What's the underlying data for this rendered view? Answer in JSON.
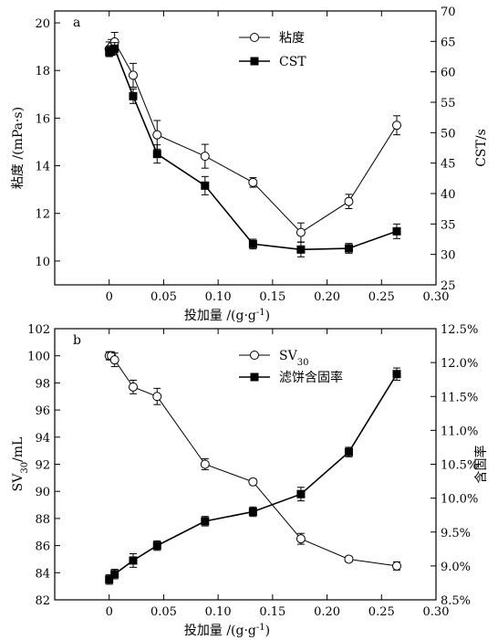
{
  "chart_data": [
    {
      "type": "line",
      "panel_label": "a",
      "xlabel": "投加量 /(g·g⁻¹)",
      "ylabel_left": "粘度 /(mPa·s)",
      "ylabel_right": "CST/s",
      "xlim": [
        -0.05,
        0.3
      ],
      "ylim_left": [
        9,
        20.5
      ],
      "ylim_right": [
        25,
        70
      ],
      "x_ticks": [
        0,
        0.05,
        0.1,
        0.15,
        0.2,
        0.25,
        0.3
      ],
      "x_tick_labels": [
        "0",
        "0.05",
        "0.10",
        "0.15",
        "0.20",
        "0.25",
        "0.30"
      ],
      "y_left_ticks": [
        10,
        12,
        14,
        16,
        18,
        20
      ],
      "y_left_tick_labels": [
        "10",
        "12",
        "14",
        "16",
        "18",
        "20"
      ],
      "y_right_ticks": [
        25,
        30,
        35,
        40,
        45,
        50,
        55,
        60,
        65,
        70
      ],
      "y_right_tick_labels": [
        "25",
        "30",
        "35",
        "40",
        "45",
        "50",
        "55",
        "60",
        "65",
        "70"
      ],
      "grid": false,
      "legend_position": "top-right",
      "series": [
        {
          "name": "粘度",
          "axis": "left",
          "marker": "open-circle",
          "x": [
            0,
            0.002,
            0.005,
            0.022,
            0.044,
            0.088,
            0.132,
            0.176,
            0.22,
            0.264
          ],
          "y": [
            18.9,
            19.0,
            19.2,
            17.8,
            15.3,
            14.4,
            13.3,
            11.2,
            12.5,
            15.7
          ],
          "err": [
            0.3,
            0.3,
            0.4,
            0.5,
            0.6,
            0.5,
            0.2,
            0.4,
            0.3,
            0.4
          ]
        },
        {
          "name": "CST",
          "axis": "right",
          "marker": "filled-square",
          "x": [
            0,
            0.002,
            0.005,
            0.022,
            0.044,
            0.088,
            0.132,
            0.176,
            0.22,
            0.264
          ],
          "y": [
            63.3,
            63.5,
            63.8,
            56.0,
            46.5,
            41.3,
            31.7,
            30.8,
            31.0,
            33.8
          ],
          "err": [
            0.8,
            0.8,
            1.0,
            1.2,
            1.5,
            1.5,
            0.8,
            1.2,
            0.8,
            1.2
          ]
        }
      ]
    },
    {
      "type": "line",
      "panel_label": "b",
      "xlabel": "投加量 /(g·g⁻¹)",
      "ylabel_left": "SV₃₀/mL",
      "ylabel_right": "含固率",
      "xlim": [
        -0.05,
        0.3
      ],
      "ylim_left": [
        82,
        102
      ],
      "ylim_right": [
        8.5,
        12.5
      ],
      "x_ticks": [
        0,
        0.05,
        0.1,
        0.15,
        0.2,
        0.25,
        0.3
      ],
      "x_tick_labels": [
        "0",
        "0.05",
        "0.10",
        "0.15",
        "0.20",
        "0.25",
        "0.30"
      ],
      "y_left_ticks": [
        82,
        84,
        86,
        88,
        90,
        92,
        94,
        96,
        98,
        100,
        102
      ],
      "y_left_tick_labels": [
        "82",
        "84",
        "86",
        "88",
        "90",
        "92",
        "94",
        "96",
        "98",
        "100",
        "102"
      ],
      "y_right_ticks": [
        8.5,
        9.0,
        9.5,
        10.0,
        10.5,
        11.0,
        11.5,
        12.0,
        12.5
      ],
      "y_right_tick_labels": [
        "8.5%",
        "9.0%",
        "9.5%",
        "10.0%",
        "10.5%",
        "11.0%",
        "11.5%",
        "12.0%",
        "12.5%"
      ],
      "grid": false,
      "legend_position": "top-right",
      "series": [
        {
          "name": "SV₃₀",
          "axis": "left",
          "marker": "open-circle",
          "x": [
            0,
            0.002,
            0.005,
            0.022,
            0.044,
            0.088,
            0.132,
            0.176,
            0.22,
            0.264
          ],
          "y": [
            100.0,
            100.0,
            99.7,
            97.7,
            97.0,
            92.0,
            90.7,
            86.5,
            85.0,
            84.5
          ],
          "err": [
            0.3,
            0.3,
            0.5,
            0.5,
            0.6,
            0.4,
            0.2,
            0.4,
            0.2,
            0.3
          ]
        },
        {
          "name": "滤饼含固率",
          "axis": "right",
          "marker": "filled-square",
          "x": [
            0,
            0.005,
            0.022,
            0.044,
            0.088,
            0.132,
            0.176,
            0.22,
            0.264
          ],
          "y": [
            8.8,
            8.88,
            9.08,
            9.3,
            9.66,
            9.8,
            10.06,
            10.68,
            11.83
          ],
          "err": [
            0.07,
            0.07,
            0.1,
            0.07,
            0.07,
            0.07,
            0.1,
            0.07,
            0.09
          ]
        }
      ]
    }
  ]
}
